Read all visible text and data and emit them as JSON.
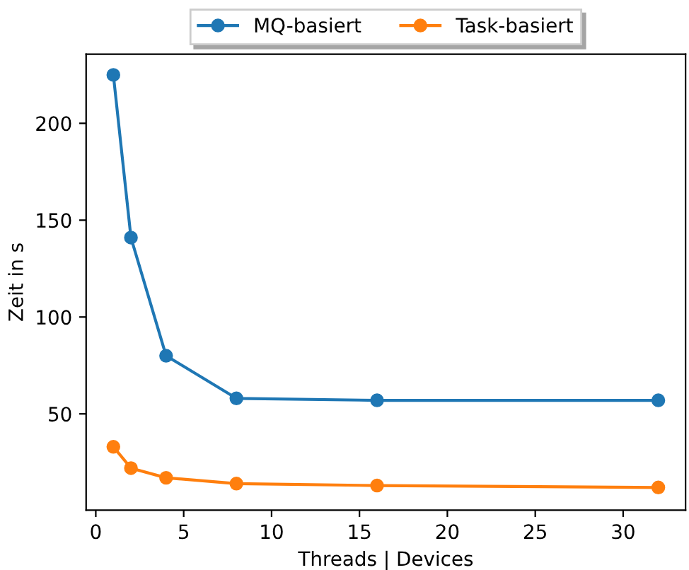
{
  "chart_data": {
    "type": "line",
    "xlabel": "Threads | Devices",
    "ylabel": "Zeit in s",
    "x": [
      1,
      2,
      4,
      8,
      16,
      32
    ],
    "series": [
      {
        "name": "MQ-basiert",
        "color": "#1f77b4",
        "values": [
          225,
          141,
          80,
          58,
          57,
          57
        ]
      },
      {
        "name": "Task-basiert",
        "color": "#ff7f0e",
        "values": [
          33,
          22,
          17,
          14,
          13,
          12
        ]
      }
    ],
    "xlim": [
      -0.55,
      33.55
    ],
    "ylim": [
      0.3,
      235.7
    ],
    "xticks": [
      0,
      5,
      10,
      15,
      20,
      25,
      30
    ],
    "yticks": [
      50,
      100,
      150,
      200
    ],
    "marker": "circle",
    "line_style": "solid",
    "legend": "top",
    "grid": false
  }
}
